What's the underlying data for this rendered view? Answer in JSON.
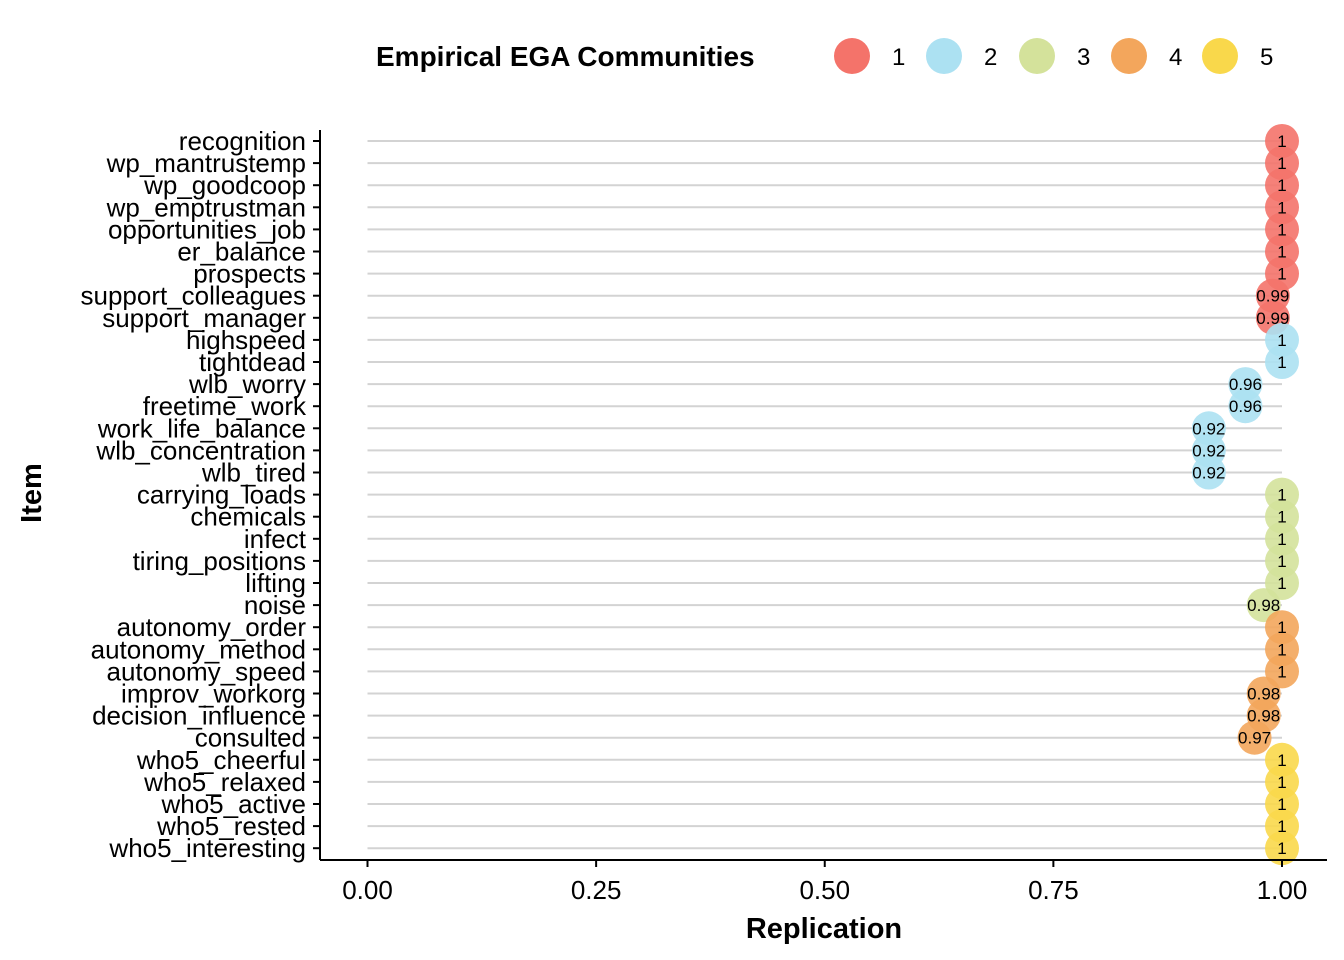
{
  "chart_data": {
    "type": "scatter",
    "xlabel": "Replication",
    "ylabel": "Item",
    "xlim": [
      0,
      1
    ],
    "x_ticks": [
      "0.00",
      "0.25",
      "0.50",
      "0.75",
      "1.00"
    ],
    "x_tick_values": [
      0,
      0.25,
      0.5,
      0.75,
      1
    ],
    "grid": "horizontal",
    "legend": {
      "title": "Empirical EGA Communities",
      "placement": "top",
      "entries": [
        {
          "label": "1",
          "color": "#F4736A"
        },
        {
          "label": "2",
          "color": "#ACE1F2"
        },
        {
          "label": "3",
          "color": "#D4E29B"
        },
        {
          "label": "4",
          "color": "#F3A65C"
        },
        {
          "label": "5",
          "color": "#F9D84B"
        }
      ]
    },
    "items": [
      {
        "item": "recognition",
        "value": 1,
        "label": "1",
        "community": 1
      },
      {
        "item": "wp_mantrustemp",
        "value": 1,
        "label": "1",
        "community": 1
      },
      {
        "item": "wp_goodcoop",
        "value": 1,
        "label": "1",
        "community": 1
      },
      {
        "item": "wp_emptrustman",
        "value": 1,
        "label": "1",
        "community": 1
      },
      {
        "item": "opportunities_job",
        "value": 1,
        "label": "1",
        "community": 1
      },
      {
        "item": "er_balance",
        "value": 1,
        "label": "1",
        "community": 1
      },
      {
        "item": "prospects",
        "value": 1,
        "label": "1",
        "community": 1
      },
      {
        "item": "support_colleagues",
        "value": 0.99,
        "label": "0.99",
        "community": 1
      },
      {
        "item": "support_manager",
        "value": 0.99,
        "label": "0.99",
        "community": 1
      },
      {
        "item": "highspeed",
        "value": 1,
        "label": "1",
        "community": 2
      },
      {
        "item": "tightdead",
        "value": 1,
        "label": "1",
        "community": 2
      },
      {
        "item": "wlb_worry",
        "value": 0.96,
        "label": "0.96",
        "community": 2
      },
      {
        "item": "freetime_work",
        "value": 0.96,
        "label": "0.96",
        "community": 2
      },
      {
        "item": "work_life_balance",
        "value": 0.92,
        "label": "0.92",
        "community": 2
      },
      {
        "item": "wlb_concentration",
        "value": 0.92,
        "label": "0.92",
        "community": 2
      },
      {
        "item": "wlb_tired",
        "value": 0.92,
        "label": "0.92",
        "community": 2
      },
      {
        "item": "carrying_loads",
        "value": 1,
        "label": "1",
        "community": 3
      },
      {
        "item": "chemicals",
        "value": 1,
        "label": "1",
        "community": 3
      },
      {
        "item": "infect",
        "value": 1,
        "label": "1",
        "community": 3
      },
      {
        "item": "tiring_positions",
        "value": 1,
        "label": "1",
        "community": 3
      },
      {
        "item": "lifting",
        "value": 1,
        "label": "1",
        "community": 3
      },
      {
        "item": "noise",
        "value": 0.98,
        "label": "0.98",
        "community": 3
      },
      {
        "item": "autonomy_order",
        "value": 1,
        "label": "1",
        "community": 4
      },
      {
        "item": "autonomy_method",
        "value": 1,
        "label": "1",
        "community": 4
      },
      {
        "item": "autonomy_speed",
        "value": 1,
        "label": "1",
        "community": 4
      },
      {
        "item": "improv_workorg",
        "value": 0.98,
        "label": "0.98",
        "community": 4
      },
      {
        "item": "decision_influence",
        "value": 0.98,
        "label": "0.98",
        "community": 4
      },
      {
        "item": "consulted",
        "value": 0.97,
        "label": "0.97",
        "community": 4
      },
      {
        "item": "who5_cheerful",
        "value": 1,
        "label": "1",
        "community": 5
      },
      {
        "item": "who5_relaxed",
        "value": 1,
        "label": "1",
        "community": 5
      },
      {
        "item": "who5_active",
        "value": 1,
        "label": "1",
        "community": 5
      },
      {
        "item": "who5_rested",
        "value": 1,
        "label": "1",
        "community": 5
      },
      {
        "item": "who5_interesting",
        "value": 1,
        "label": "1",
        "community": 5
      }
    ]
  }
}
